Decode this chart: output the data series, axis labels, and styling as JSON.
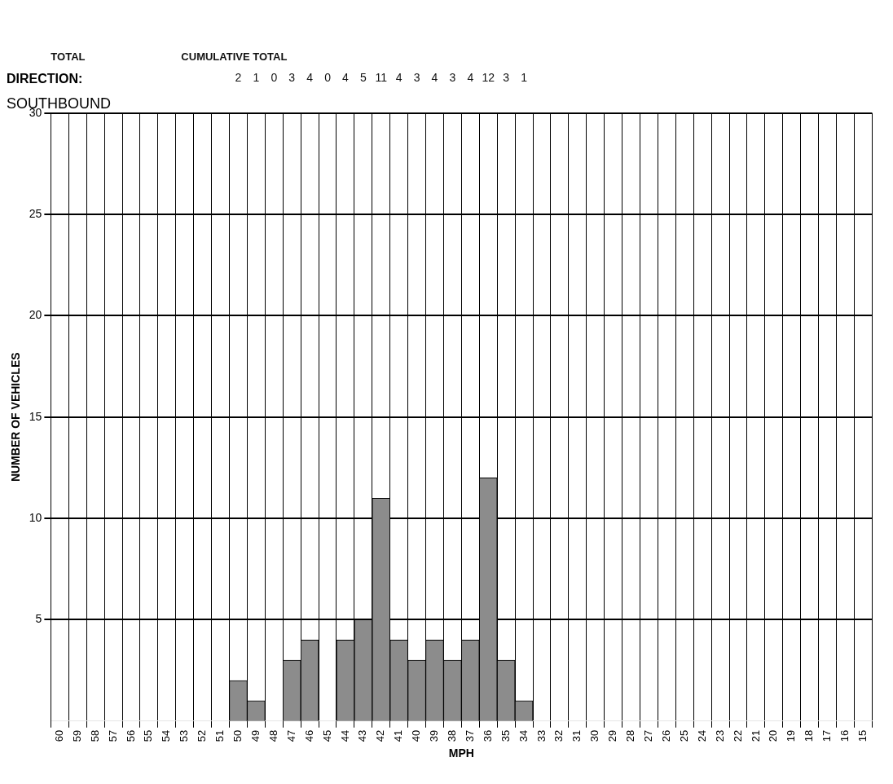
{
  "chart_data": {
    "type": "bar",
    "title": "DIRECTION:",
    "subtitle": "SOUTHBOUND",
    "xlabel": "MPH",
    "ylabel": "NUMBER OF VEHICLES",
    "categories": [
      "60",
      "59",
      "58",
      "57",
      "56",
      "55",
      "54",
      "53",
      "52",
      "51",
      "50",
      "49",
      "48",
      "47",
      "46",
      "45",
      "44",
      "43",
      "42",
      "41",
      "40",
      "39",
      "38",
      "37",
      "36",
      "35",
      "34",
      "33",
      "32",
      "31",
      "30",
      "29",
      "28",
      "27",
      "26",
      "25",
      "24",
      "23",
      "22",
      "21",
      "20",
      "19",
      "18",
      "17",
      "16",
      "15"
    ],
    "values": [
      0,
      0,
      0,
      0,
      0,
      0,
      0,
      0,
      0,
      0,
      2,
      1,
      0,
      3,
      4,
      0,
      4,
      5,
      11,
      4,
      3,
      4,
      3,
      4,
      12,
      3,
      1,
      0,
      0,
      0,
      0,
      0,
      0,
      0,
      0,
      0,
      0,
      0,
      0,
      0,
      0,
      0,
      0,
      0,
      0,
      0
    ],
    "value_labels": [
      null,
      null,
      null,
      null,
      null,
      null,
      null,
      null,
      null,
      null,
      "2",
      "1",
      "0",
      "3",
      "4",
      "0",
      "4",
      "5",
      "11",
      "4",
      "3",
      "4",
      "3",
      "4",
      "12",
      "3",
      "1",
      null,
      null,
      null,
      null,
      null,
      null,
      null,
      null,
      null,
      null,
      null,
      null,
      null,
      null,
      null,
      null,
      null,
      null,
      null
    ],
    "color": "#8c8c8c",
    "ylim": [
      0,
      30
    ],
    "yticks": [
      5,
      10,
      15,
      20,
      25,
      30
    ],
    "grid": true,
    "legend": false,
    "annotations": [
      "TOTAL",
      "CUMULATIVE TOTAL"
    ]
  }
}
